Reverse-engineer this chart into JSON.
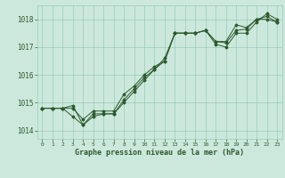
{
  "title": "Graphe pression niveau de la mer (hPa)",
  "xlabel_ticks": [
    0,
    1,
    2,
    3,
    4,
    5,
    6,
    7,
    8,
    9,
    10,
    11,
    12,
    13,
    14,
    15,
    16,
    17,
    18,
    19,
    20,
    21,
    22,
    23
  ],
  "ylim": [
    1013.7,
    1018.5
  ],
  "yticks": [
    1014,
    1015,
    1016,
    1017,
    1018
  ],
  "background_color": "#cce8dc",
  "grid_color": "#99ccb8",
  "line_color": "#2d5a2d",
  "series1": [
    1014.8,
    1014.8,
    1014.8,
    1014.8,
    1014.4,
    1014.7,
    1014.7,
    1014.7,
    1015.3,
    1015.6,
    1016.0,
    1016.3,
    1016.5,
    1017.5,
    1017.5,
    1017.5,
    1017.6,
    1017.2,
    1017.2,
    1017.8,
    1017.7,
    1018.0,
    1018.0,
    1017.9
  ],
  "series2": [
    1014.8,
    1014.8,
    1014.8,
    1014.5,
    1014.2,
    1014.5,
    1014.6,
    1014.6,
    1015.0,
    1015.4,
    1015.8,
    1016.2,
    1016.5,
    1017.5,
    1017.5,
    1017.5,
    1017.6,
    1017.1,
    1017.0,
    1017.5,
    1017.5,
    1017.9,
    1018.2,
    1018.0
  ],
  "series3": [
    1014.8,
    1014.8,
    1014.8,
    1014.9,
    1014.2,
    1014.6,
    1014.6,
    1014.6,
    1015.1,
    1015.5,
    1015.9,
    1016.2,
    1016.6,
    1017.5,
    1017.5,
    1017.5,
    1017.6,
    1017.2,
    1017.15,
    1017.6,
    1017.65,
    1018.0,
    1018.1,
    1017.9
  ],
  "figwidth": 3.2,
  "figheight": 2.0,
  "dpi": 100
}
